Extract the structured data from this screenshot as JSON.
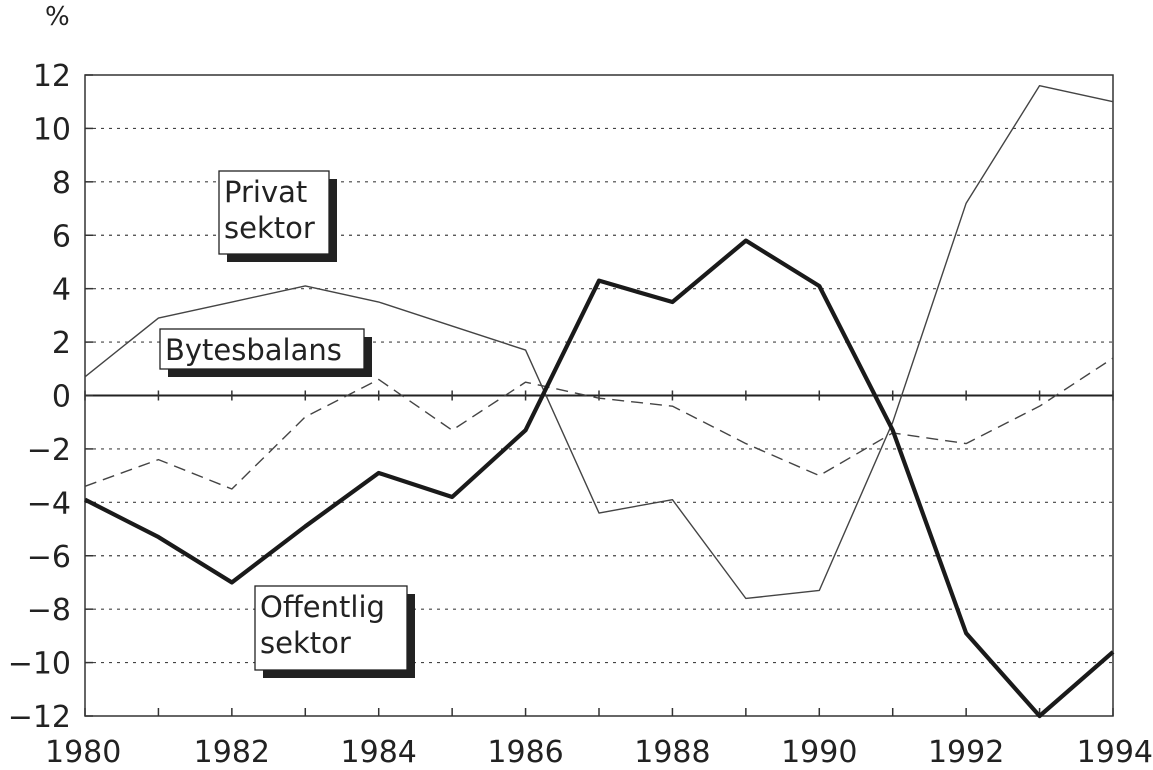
{
  "chart_data": {
    "type": "line",
    "unit_label": "%",
    "x": [
      1980,
      1981,
      1982,
      1983,
      1984,
      1985,
      1986,
      1987,
      1988,
      1989,
      1990,
      1991,
      1992,
      1993,
      1994
    ],
    "xlim": [
      1980,
      1994
    ],
    "ylim": [
      -12,
      12
    ],
    "x_tick_labels": [
      "1980",
      "1982",
      "1984",
      "1986",
      "1988",
      "1990",
      "1992",
      "1994"
    ],
    "y_tick_labels": [
      "12",
      "10",
      "8",
      "6",
      "4",
      "2",
      "0",
      "−2",
      "−4",
      "−6",
      "−8",
      "−10",
      "−12"
    ],
    "grid": true,
    "series": [
      {
        "name": "Privat sektor",
        "style": "thin-solid",
        "color": "#444444",
        "values": [
          0.7,
          2.9,
          3.5,
          4.1,
          3.5,
          2.6,
          1.7,
          -4.4,
          -3.9,
          -7.6,
          -7.3,
          -1.0,
          7.2,
          11.6,
          11.0
        ]
      },
      {
        "name": "Bytesbalans",
        "style": "dashed",
        "color": "#444444",
        "values": [
          -3.4,
          -2.4,
          -3.5,
          -0.8,
          0.6,
          -1.3,
          0.5,
          -0.1,
          -0.4,
          -1.8,
          -3.0,
          -1.4,
          -1.8,
          -0.4,
          1.4
        ]
      },
      {
        "name": "Offentlig sektor",
        "style": "thick-solid",
        "color": "#1a1a1a",
        "values": [
          -3.9,
          -5.3,
          -7.0,
          -4.9,
          -2.9,
          -3.8,
          -1.3,
          4.3,
          3.5,
          5.8,
          4.1,
          -1.3,
          -8.9,
          -12.0,
          -9.6
        ]
      }
    ],
    "annotations": [
      {
        "lines": [
          "Privat",
          "sektor"
        ],
        "series": "Privat sektor"
      },
      {
        "lines": [
          "Bytesbalans"
        ],
        "series": "Bytesbalans"
      },
      {
        "lines": [
          "Offentlig",
          "sektor"
        ],
        "series": "Offentlig sektor"
      }
    ]
  }
}
